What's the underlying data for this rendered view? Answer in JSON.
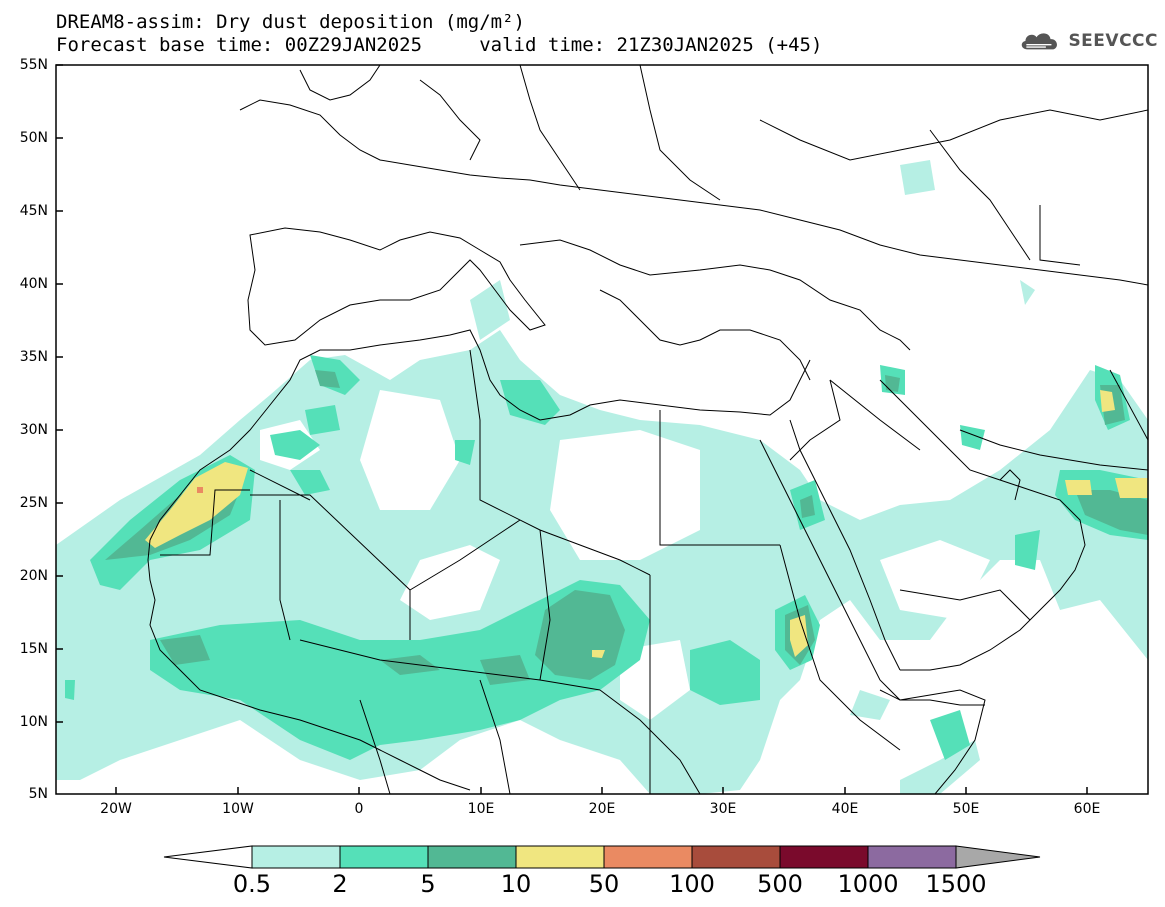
{
  "title": {
    "line1": "DREAM8-assim: Dry dust deposition (mg/m²)",
    "line2": "Forecast base time: 00Z29JAN2025     valid time: 21Z30JAN2025 (+45)"
  },
  "logo": {
    "text": "SEEVCCC",
    "icon": "cloud-icon"
  },
  "map": {
    "region": "North Africa / Middle East",
    "lat_labels": [
      "55N",
      "50N",
      "45N",
      "40N",
      "35N",
      "30N",
      "25N",
      "20N",
      "15N",
      "10N",
      "5N"
    ],
    "lon_labels": [
      "20W",
      "10W",
      "0",
      "10E",
      "20E",
      "30E",
      "40E",
      "50E",
      "60E"
    ],
    "extent": {
      "lon": [
        -25,
        65
      ],
      "lat": [
        5,
        55
      ]
    }
  },
  "colorbar": {
    "labels": [
      "0.5",
      "2",
      "5",
      "10",
      "50",
      "100",
      "500",
      "1000",
      "1500"
    ],
    "colors": [
      "#b6efe4",
      "#55e0b8",
      "#52b894",
      "#f0e680",
      "#ea8a62",
      "#a84c3c",
      "#7a0a2c",
      "#8c6aa0"
    ],
    "under_color": "#ffffff",
    "over_color": "#a8a8a8"
  }
}
